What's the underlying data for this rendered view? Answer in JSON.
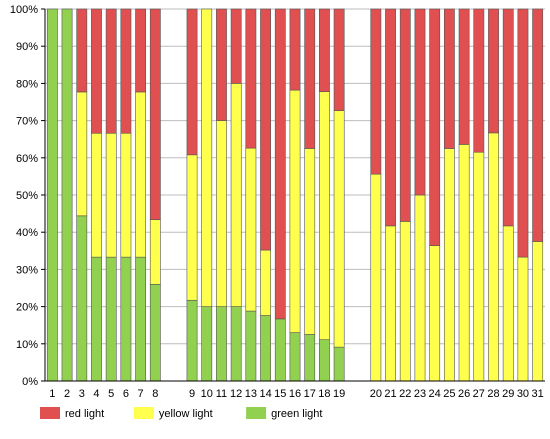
{
  "chart_data": {
    "type": "bar",
    "stacked": true,
    "categories": [
      "1",
      "2",
      "3",
      "4",
      "5",
      "6",
      "7",
      "8",
      "9",
      "10",
      "11",
      "12",
      "13",
      "14",
      "15",
      "16",
      "17",
      "18",
      "19",
      "20",
      "21",
      "22",
      "23",
      "24",
      "25",
      "26",
      "27",
      "28",
      "29",
      "30",
      "31"
    ],
    "groups": [
      [
        1,
        8
      ],
      [
        9,
        19
      ],
      [
        20,
        31
      ]
    ],
    "series": [
      {
        "name": "green light",
        "color": "#92D050",
        "values": [
          100,
          100,
          44.4,
          33.3,
          33.3,
          33.3,
          33.3,
          26,
          21.7,
          20,
          20,
          20,
          18.8,
          17.6,
          16.7,
          13,
          12.5,
          11.1,
          9.1,
          0,
          0,
          0,
          0,
          0,
          0,
          0,
          0,
          0,
          0,
          0,
          0
        ]
      },
      {
        "name": "yellow light",
        "color": "#FFFF4D",
        "values": [
          0,
          0,
          33.3,
          33.3,
          33.3,
          33.3,
          44.4,
          17.4,
          39.1,
          80,
          50,
          60,
          43.8,
          17.6,
          0,
          65.2,
          50,
          66.7,
          63.6,
          55.6,
          41.7,
          42.9,
          50,
          36.4,
          62.5,
          63.6,
          61.5,
          66.7,
          41.7,
          33.3,
          37.5
        ]
      },
      {
        "name": "red light",
        "color": "#E05050",
        "values": [
          0,
          0,
          22.3,
          33.4,
          33.4,
          33.4,
          22.3,
          56.6,
          39.2,
          0,
          30,
          20,
          37.4,
          64.8,
          83.3,
          21.8,
          37.5,
          22.2,
          27.3,
          44.4,
          58.3,
          57.1,
          50,
          63.6,
          37.5,
          36.4,
          38.5,
          33.3,
          58.3,
          66.7,
          62.5
        ]
      }
    ],
    "yticks": [
      "0%",
      "10%",
      "20%",
      "30%",
      "40%",
      "50%",
      "60%",
      "70%",
      "80%",
      "90%",
      "100%"
    ],
    "ylim": [
      0,
      100
    ],
    "xlabel": "",
    "ylabel": "",
    "title": "",
    "grid": true,
    "legend_position": "bottom-left"
  }
}
